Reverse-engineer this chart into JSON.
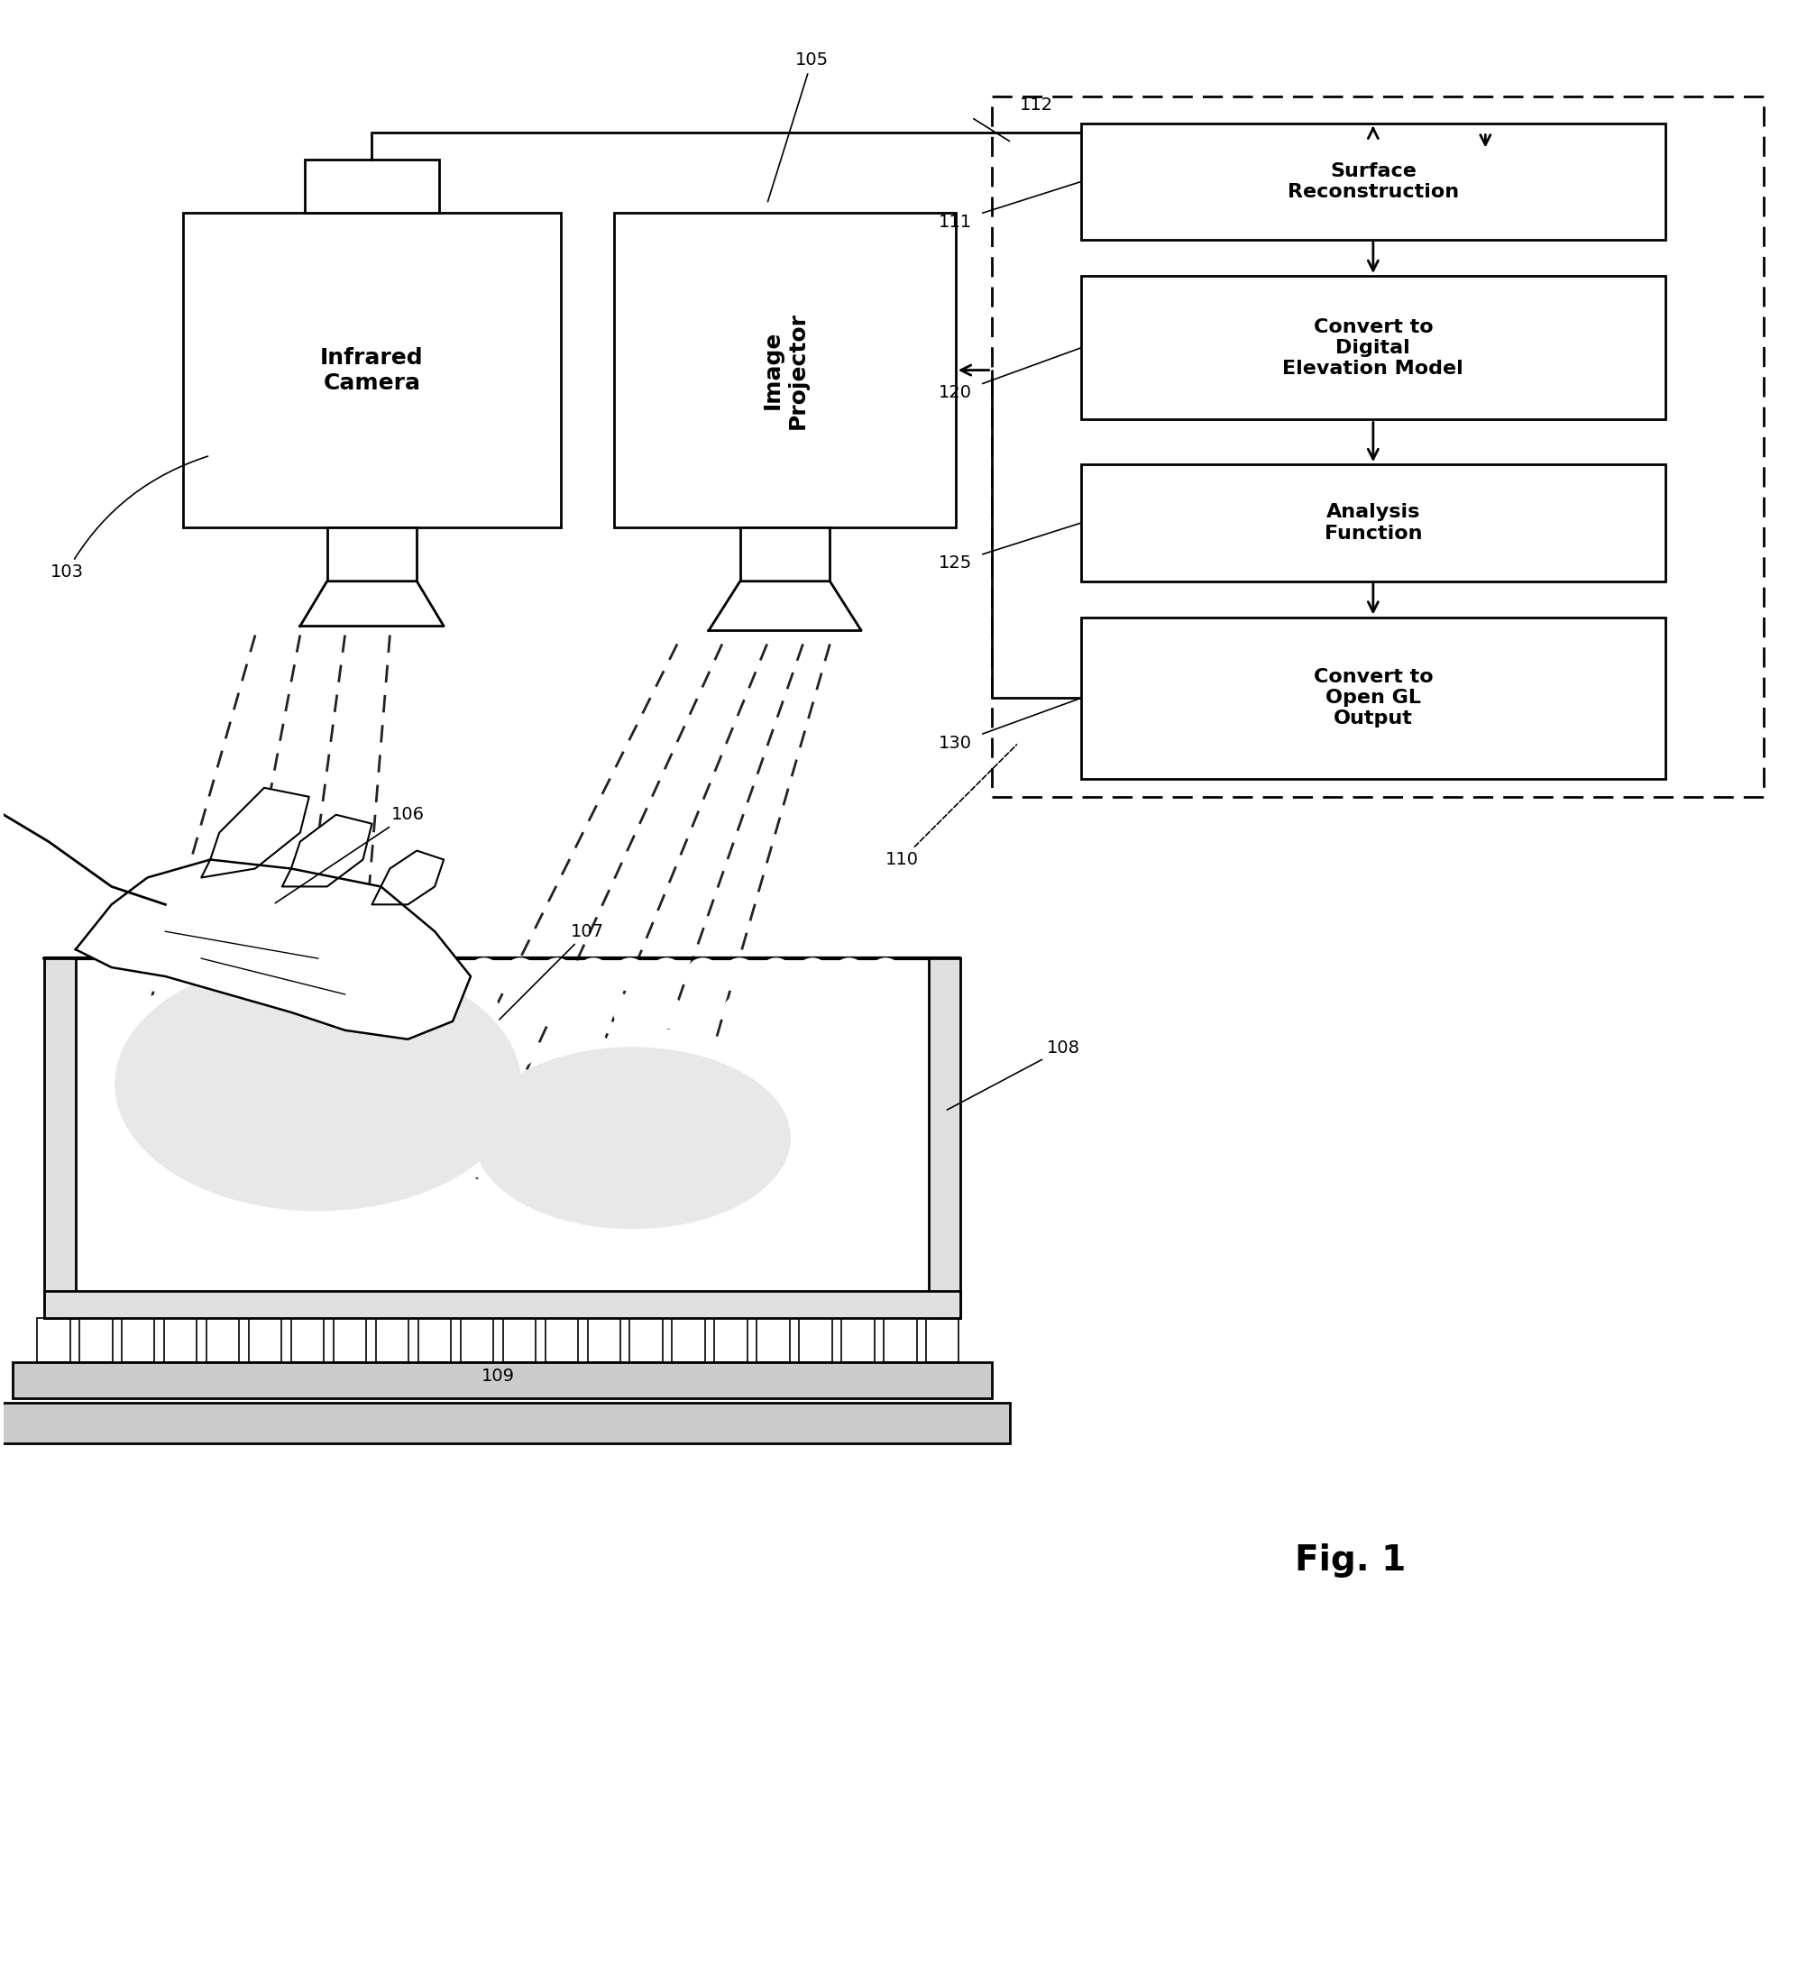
{
  "bg_color": "#ffffff",
  "line_color": "#000000",
  "labels": {
    "infrared_camera": "Infrared\nCamera",
    "image_projector": "Image\nProjector",
    "surface_reconstruction": "Surface\nReconstruction",
    "convert_dem": "Convert to\nDigital\nElevation Model",
    "analysis_function": "Analysis\nFunction",
    "convert_gl": "Convert to\nOpen GL\nOutput"
  },
  "ref_numbers": {
    "n103": "103",
    "n105": "105",
    "n106": "106",
    "n107": "107",
    "n108": "108",
    "n109": "109",
    "n110": "110",
    "n111": "111",
    "n112": "112",
    "n120": "120",
    "n125": "125",
    "n130": "130"
  },
  "fig_label": "Fig. 1",
  "font_size_box": 16,
  "font_size_ref": 14,
  "font_size_fig": 28
}
